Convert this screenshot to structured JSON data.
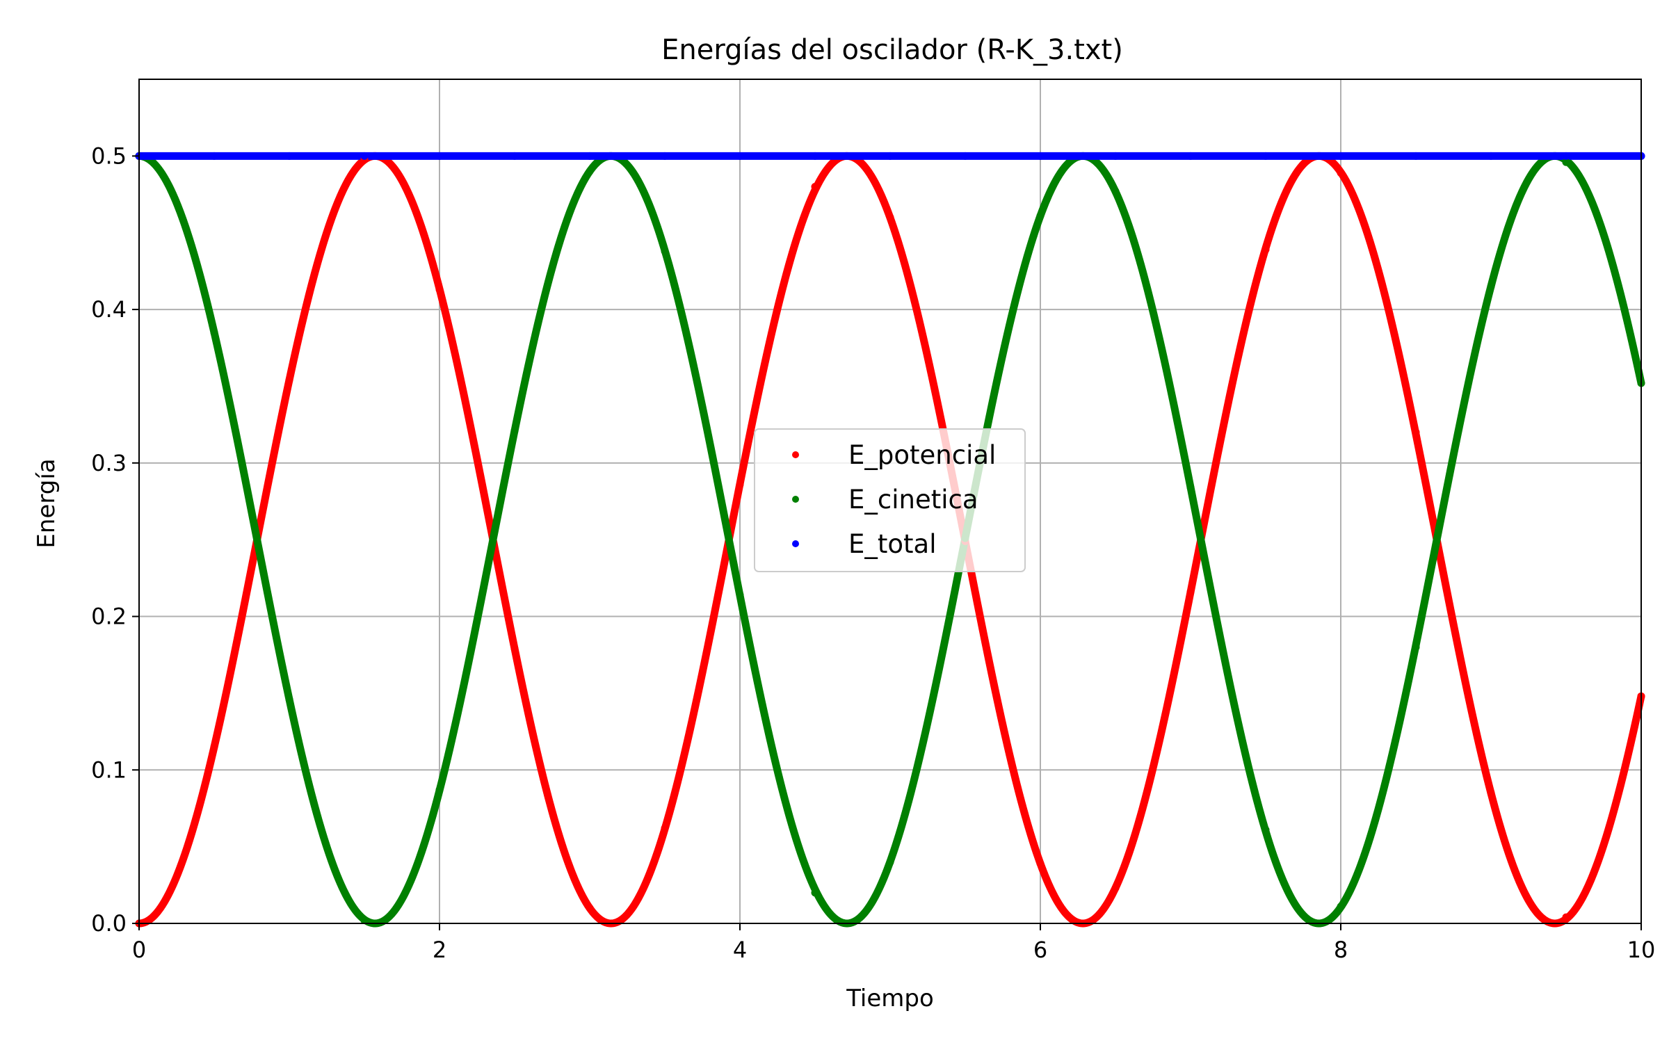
{
  "chart_data": {
    "type": "scatter",
    "title": "Energías del oscilador (R-K_3.txt)",
    "xlabel": "Tiempo",
    "ylabel": "Energía",
    "xlim": [
      0,
      10
    ],
    "ylim": [
      0,
      0.55
    ],
    "xticks": [
      "0",
      "2",
      "4",
      "6",
      "8",
      "10"
    ],
    "yticks": [
      "0.0",
      "0.1",
      "0.2",
      "0.3",
      "0.4",
      "0.5"
    ],
    "grid": true,
    "legend_position": "center",
    "model": "E_potencial = 0.5*sin^2(t), E_cinetica = 0.5*cos^2(t), E_total = 0.5",
    "x": [
      0,
      0.5,
      1,
      1.5,
      2,
      2.5,
      3,
      3.5,
      4,
      4.5,
      5,
      5.5,
      6,
      6.5,
      7,
      7.5,
      8,
      8.5,
      9,
      9.5,
      10
    ],
    "series": [
      {
        "name": "E_potencial",
        "color": "#ff0000",
        "values": [
          0.0,
          0.115,
          0.354,
          0.498,
          0.413,
          0.179,
          0.01,
          0.062,
          0.286,
          0.48,
          0.46,
          0.249,
          0.039,
          0.023,
          0.216,
          0.439,
          0.489,
          0.32,
          0.085,
          0.004,
          0.148
        ]
      },
      {
        "name": "E_cinetica",
        "color": "#008000",
        "values": [
          0.5,
          0.385,
          0.146,
          0.002,
          0.087,
          0.321,
          0.49,
          0.438,
          0.214,
          0.02,
          0.04,
          0.251,
          0.461,
          0.477,
          0.284,
          0.061,
          0.011,
          0.18,
          0.415,
          0.496,
          0.352
        ]
      },
      {
        "name": "E_total",
        "color": "#0000ff",
        "values": [
          0.5,
          0.5,
          0.5,
          0.5,
          0.5,
          0.5,
          0.5,
          0.5,
          0.5,
          0.5,
          0.5,
          0.5,
          0.5,
          0.5,
          0.5,
          0.5,
          0.5,
          0.5,
          0.5,
          0.5,
          0.5
        ]
      }
    ]
  }
}
